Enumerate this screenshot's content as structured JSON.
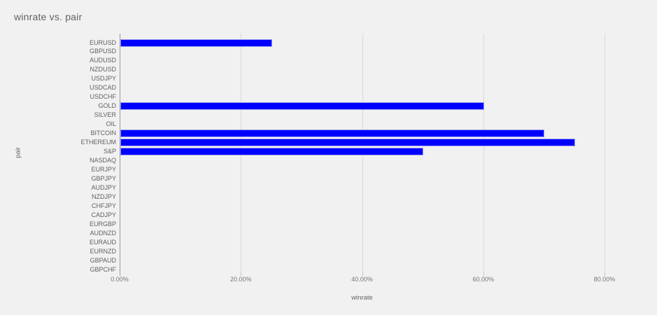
{
  "chart_data": {
    "type": "bar",
    "orientation": "horizontal",
    "title": "winrate vs. pair",
    "xlabel": "winrate",
    "ylabel": "pair",
    "categories": [
      "EURUSD",
      "GBPUSD",
      "AUDUSD",
      "NZDUSD",
      "USDJPY",
      "USDCAD",
      "USDCHF",
      "GOLD",
      "SILVER",
      "OIL",
      "BITCOIN",
      "ETHEREUM",
      "S&P",
      "NASDAQ",
      "EURJPY",
      "GBPJPY",
      "AUDJPY",
      "NZDJPY",
      "CHFJPY",
      "CADJPY",
      "EURGBP",
      "AUDNZD",
      "EURAUD",
      "EURNZD",
      "GBPAUD",
      "GBPCHF"
    ],
    "values": [
      25,
      0,
      0,
      0,
      0,
      0,
      0,
      60,
      0,
      0,
      70,
      75,
      50,
      0,
      0,
      0,
      0,
      0,
      0,
      0,
      0,
      0,
      0,
      0,
      0,
      0
    ],
    "value_unit": "%",
    "x_ticks": [
      {
        "value": 0,
        "label": "0.00%"
      },
      {
        "value": 20,
        "label": "20.00%"
      },
      {
        "value": 40,
        "label": "40.00%"
      },
      {
        "value": 60,
        "label": "60.00%"
      },
      {
        "value": 80,
        "label": "80.00%"
      }
    ],
    "xlim": [
      0,
      86.5
    ],
    "grid": true,
    "legend_position": "none",
    "bar_color": "#0000ff",
    "background_color": "#f1f1f1"
  }
}
